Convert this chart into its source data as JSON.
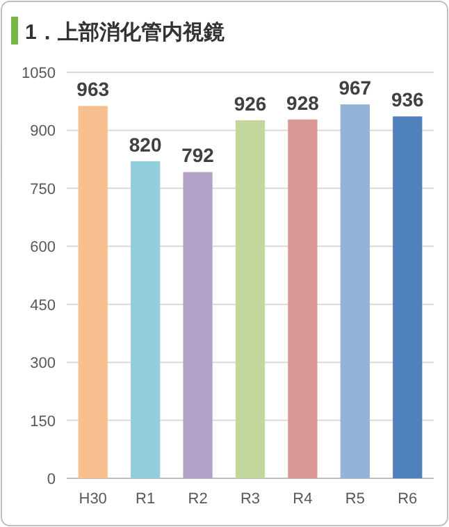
{
  "chart_data": {
    "type": "bar",
    "title": "1．上部消化管内視鏡",
    "categories": [
      "H30",
      "R1",
      "R2",
      "R3",
      "R4",
      "R5",
      "R6"
    ],
    "values": [
      963,
      820,
      792,
      926,
      928,
      967,
      936
    ],
    "colors": [
      "#f9c08f",
      "#92cddc",
      "#b3a2c7",
      "#c3d69b",
      "#d99694",
      "#95b3d7",
      "#4f81bd"
    ],
    "ylim": [
      0,
      1050
    ],
    "yticks": [
      0,
      150,
      300,
      450,
      600,
      750,
      900,
      1050
    ],
    "grid": "y",
    "data_labels": true
  }
}
